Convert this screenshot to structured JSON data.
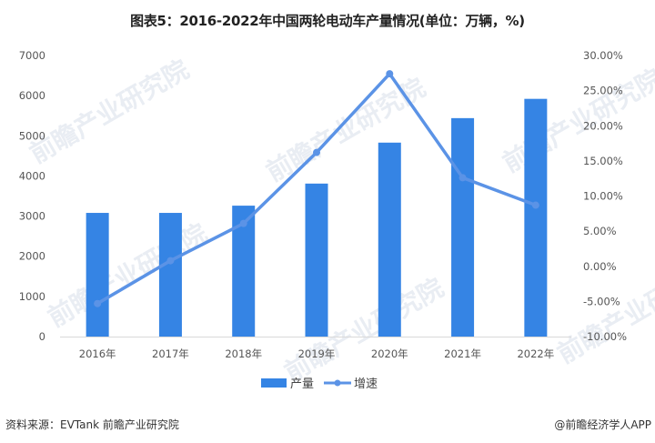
{
  "title": "图表5：2016-2022年中国两轮电动车产量情况(单位：万辆，%)",
  "chart_data": {
    "type": "bar",
    "title": "图表5：2016-2022年中国两轮电动车产量情况(单位：万辆，%)",
    "categories": [
      "2016年",
      "2017年",
      "2018年",
      "2019年",
      "2020年",
      "2021年",
      "2022年"
    ],
    "series": [
      {
        "name": "产量",
        "type": "bar",
        "axis": "left",
        "color": "#3584e4",
        "values": [
          3080,
          3080,
          3260,
          3810,
          4830,
          5440,
          5920
        ]
      },
      {
        "name": "增速",
        "type": "line",
        "axis": "right",
        "color": "#5b93e6",
        "values": [
          -5.3,
          0.8,
          6.1,
          16.2,
          27.4,
          12.6,
          8.7
        ]
      }
    ],
    "left_axis": {
      "ylim": [
        0,
        7000
      ],
      "ticks": [
        "0",
        "1000",
        "2000",
        "3000",
        "4000",
        "5000",
        "6000",
        "7000"
      ]
    },
    "right_axis": {
      "ylim": [
        -10,
        30
      ],
      "ticks": [
        "-10.00%",
        "-5.00%",
        "0.00%",
        "5.00%",
        "10.00%",
        "15.00%",
        "20.00%",
        "25.00%",
        "30.00%"
      ]
    },
    "xlabel": "",
    "ylabel": "",
    "grid": false,
    "legend_position": "bottom"
  },
  "legend": {
    "bar_label": "产量",
    "line_label": "增速"
  },
  "footer": {
    "source": "资料来源：EVTank 前瞻产业研究院",
    "credit": "@前瞻经济学人APP"
  },
  "watermark": "前瞻产业研究院"
}
